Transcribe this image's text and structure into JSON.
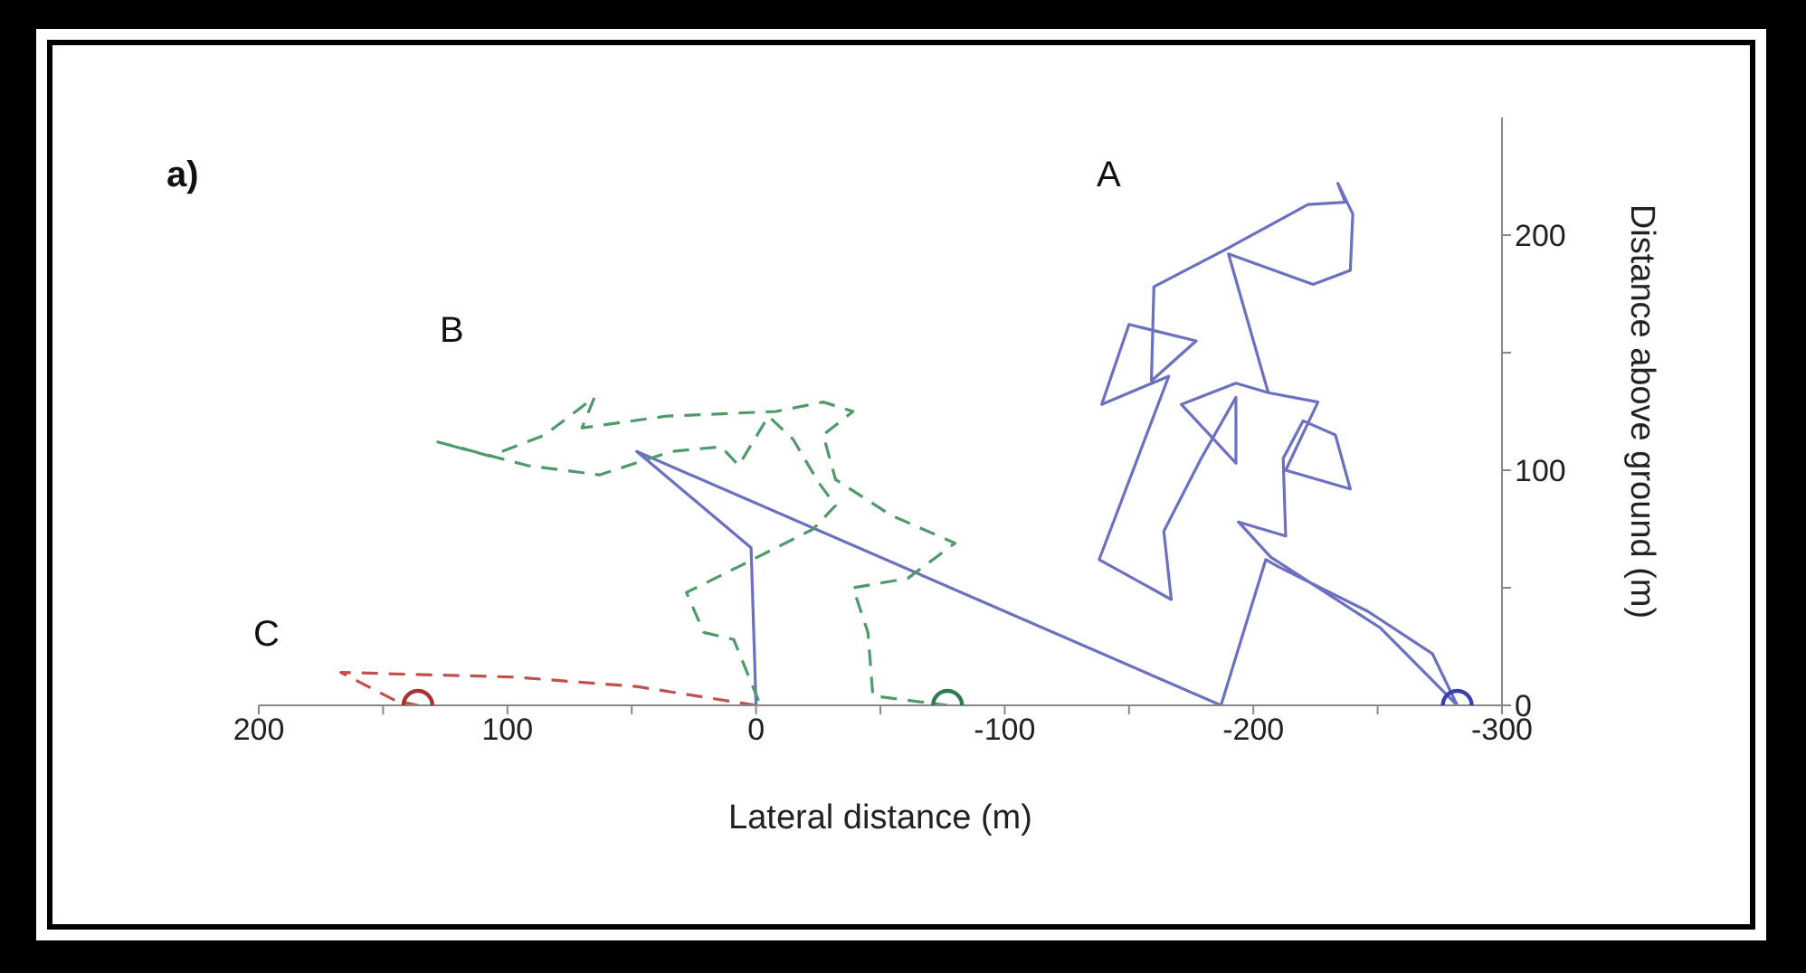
{
  "chart_data": {
    "type": "line",
    "xlabel": "Lateral distance (m)",
    "ylabel": "Distance above ground (m)",
    "xlim": [
      200,
      -300
    ],
    "ylim": [
      0,
      250
    ],
    "xticks": [
      200,
      {
        "value": 150,
        "label": null
      },
      100,
      {
        "value": 50,
        "label": null
      },
      0,
      {
        "value": -50,
        "label": null
      },
      -100,
      {
        "value": -150,
        "label": null
      },
      -200,
      {
        "value": -250,
        "label": null
      },
      -300
    ],
    "yticks": [
      0,
      {
        "value": 50,
        "label": null
      },
      100,
      {
        "value": 150,
        "label": null
      },
      200
    ],
    "grid": false,
    "annotations": [
      "a)",
      "A",
      "B",
      "C"
    ],
    "series": [
      {
        "line_style": "solid",
        "marker": "none",
        "color": "#6b70c0",
        "x": [
          0,
          2,
          48,
          -187,
          -205,
          -210,
          -246,
          -272,
          -282,
          -251,
          -207,
          -194,
          -213,
          -212,
          -220,
          -233,
          -239,
          -213,
          -226,
          -206,
          -193,
          -171,
          -193,
          -193,
          -179,
          -164,
          -167,
          -138,
          -166,
          -139,
          -150,
          -177,
          -159,
          -160,
          -189,
          -222,
          -237,
          -234,
          -240,
          -239,
          -224,
          -190,
          -206
        ],
        "values": [
          0,
          67,
          108,
          0,
          62,
          59,
          40,
          22,
          0,
          33,
          63,
          78,
          72,
          105,
          121,
          115,
          92,
          100,
          129,
          133,
          137,
          128,
          103,
          131,
          105,
          74,
          45,
          62,
          140,
          128,
          162,
          155,
          138,
          178,
          194,
          213,
          214,
          222,
          209,
          185,
          179,
          192,
          133
        ]
      },
      {
        "line_style": "dashed",
        "marker": "none",
        "color": "#4e9a6a",
        "x": [
          -1,
          9,
          21,
          28,
          7,
          -23,
          -32,
          -25,
          -15,
          -5,
          7,
          14,
          34,
          63,
          92,
          128,
          107,
          85,
          65,
          70,
          36,
          -8,
          -27,
          -39,
          -27,
          -32,
          -54,
          -80,
          -61,
          -39,
          -45,
          -47,
          -77
        ],
        "values": [
          2,
          28,
          31,
          48,
          59,
          75,
          85,
          95,
          113,
          123,
          102,
          110,
          108,
          98,
          102,
          112,
          106,
          115,
          131,
          118,
          123,
          125,
          129,
          125,
          115,
          96,
          81,
          69,
          54,
          50,
          31,
          4,
          0
        ]
      },
      {
        "line_style": "dashed",
        "marker": "none",
        "color": "#c0504d",
        "x": [
          0,
          48,
          97,
          167,
          145,
          136
        ],
        "values": [
          0,
          8,
          12,
          14,
          2,
          0
        ]
      },
      {
        "type": "scatter",
        "marker": "circle",
        "color": "#3a3fb0",
        "x": [
          -282
        ],
        "values": [
          0
        ]
      },
      {
        "type": "scatter",
        "marker": "circle",
        "color": "#2e7d4f",
        "x": [
          -77
        ],
        "values": [
          0
        ]
      },
      {
        "type": "scatter",
        "marker": "circle",
        "color": "#a83232",
        "x": [
          136
        ],
        "values": [
          0
        ]
      }
    ]
  }
}
